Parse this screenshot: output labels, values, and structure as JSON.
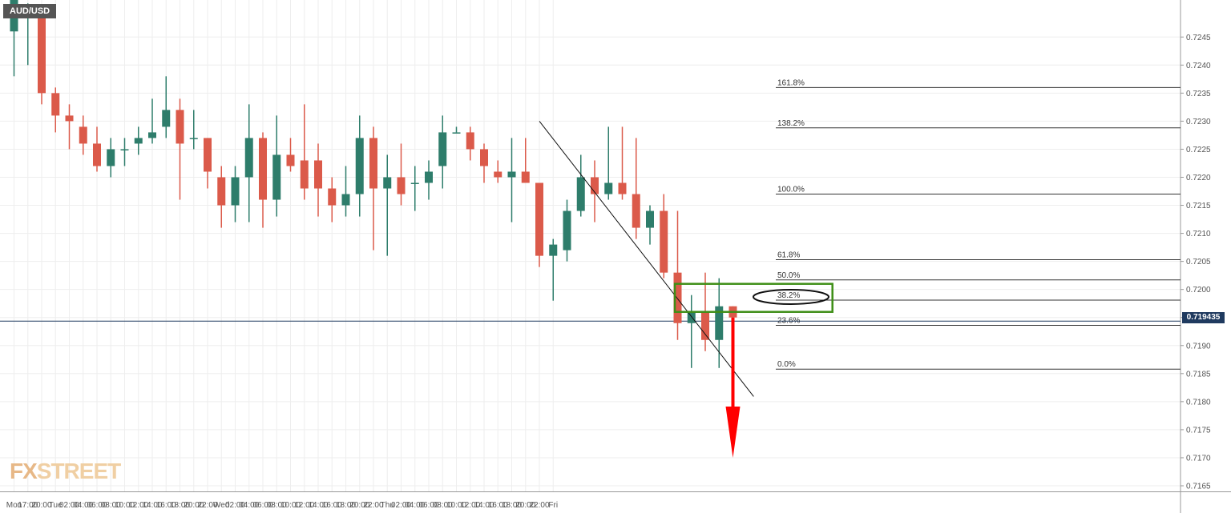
{
  "chart_data": {
    "type": "candlestick",
    "symbol": "AUD/USD",
    "watermark": {
      "part1": "FX",
      "part2": "STREET"
    },
    "current_price": "0.719435",
    "y_axis": {
      "range": [
        0.7163,
        0.7248
      ],
      "ticks": [
        "0.7245",
        "0.7240",
        "0.7235",
        "0.7230",
        "0.7225",
        "0.7220",
        "0.7215",
        "0.7210",
        "0.7205",
        "0.7200",
        "0.7195",
        "0.7190",
        "0.7185",
        "0.7180",
        "0.7175",
        "0.7170",
        "0.7165"
      ]
    },
    "x_axis": {
      "labels": [
        "Mon",
        "17:00",
        "20:00",
        "Tue",
        "02:00",
        "04:00",
        "06:00",
        "08:00",
        "10:00",
        "12:00",
        "14:00",
        "16:00",
        "18:00",
        "20:00",
        "22:00",
        "Wed",
        "02:00",
        "04:00",
        "06:00",
        "08:00",
        "10:00",
        "12:00",
        "14:00",
        "16:00",
        "18:00",
        "20:00",
        "22:00",
        "Thu",
        "02:00",
        "04:00",
        "06:00",
        "08:00",
        "10:00",
        "12:00",
        "14:00",
        "16:00",
        "18:00",
        "20:00",
        "22:00",
        "Fri"
      ]
    },
    "candles": [
      {
        "o": 0.7246,
        "h": 0.7255,
        "l": 0.7238,
        "c": 0.7252
      },
      {
        "o": 0.725,
        "h": 0.7251,
        "l": 0.724,
        "c": 0.725
      },
      {
        "o": 0.725,
        "h": 0.725,
        "l": 0.7233,
        "c": 0.7235
      },
      {
        "o": 0.7235,
        "h": 0.7236,
        "l": 0.7228,
        "c": 0.7231
      },
      {
        "o": 0.7231,
        "h": 0.7233,
        "l": 0.7225,
        "c": 0.723
      },
      {
        "o": 0.7229,
        "h": 0.7231,
        "l": 0.7224,
        "c": 0.7226
      },
      {
        "o": 0.7226,
        "h": 0.7229,
        "l": 0.7221,
        "c": 0.7222
      },
      {
        "o": 0.7222,
        "h": 0.7227,
        "l": 0.722,
        "c": 0.7225
      },
      {
        "o": 0.7225,
        "h": 0.7227,
        "l": 0.7222,
        "c": 0.7225
      },
      {
        "o": 0.7226,
        "h": 0.7229,
        "l": 0.7224,
        "c": 0.7227
      },
      {
        "o": 0.7227,
        "h": 0.7234,
        "l": 0.7226,
        "c": 0.7228
      },
      {
        "o": 0.7229,
        "h": 0.7238,
        "l": 0.7227,
        "c": 0.7232
      },
      {
        "o": 0.7232,
        "h": 0.7234,
        "l": 0.7216,
        "c": 0.7226
      },
      {
        "o": 0.7227,
        "h": 0.7232,
        "l": 0.7225,
        "c": 0.7227
      },
      {
        "o": 0.7227,
        "h": 0.7227,
        "l": 0.7218,
        "c": 0.7221
      },
      {
        "o": 0.722,
        "h": 0.7222,
        "l": 0.7211,
        "c": 0.7215
      },
      {
        "o": 0.7215,
        "h": 0.7222,
        "l": 0.7212,
        "c": 0.722
      },
      {
        "o": 0.722,
        "h": 0.7233,
        "l": 0.7212,
        "c": 0.7227
      },
      {
        "o": 0.7227,
        "h": 0.7228,
        "l": 0.7211,
        "c": 0.7216
      },
      {
        "o": 0.7216,
        "h": 0.7231,
        "l": 0.7213,
        "c": 0.7224
      },
      {
        "o": 0.7224,
        "h": 0.7227,
        "l": 0.7221,
        "c": 0.7222
      },
      {
        "o": 0.7223,
        "h": 0.7233,
        "l": 0.7216,
        "c": 0.7218
      },
      {
        "o": 0.7223,
        "h": 0.7226,
        "l": 0.7213,
        "c": 0.7218
      },
      {
        "o": 0.7218,
        "h": 0.722,
        "l": 0.7212,
        "c": 0.7215
      },
      {
        "o": 0.7215,
        "h": 0.7222,
        "l": 0.7213,
        "c": 0.7217
      },
      {
        "o": 0.7217,
        "h": 0.7231,
        "l": 0.7213,
        "c": 0.7227
      },
      {
        "o": 0.7227,
        "h": 0.7229,
        "l": 0.7207,
        "c": 0.7218
      },
      {
        "o": 0.7218,
        "h": 0.7224,
        "l": 0.7206,
        "c": 0.722
      },
      {
        "o": 0.722,
        "h": 0.7226,
        "l": 0.7215,
        "c": 0.7217
      },
      {
        "o": 0.7219,
        "h": 0.7222,
        "l": 0.7214,
        "c": 0.7219
      },
      {
        "o": 0.7219,
        "h": 0.7223,
        "l": 0.7216,
        "c": 0.7221
      },
      {
        "o": 0.7222,
        "h": 0.7231,
        "l": 0.7218,
        "c": 0.7228
      },
      {
        "o": 0.7228,
        "h": 0.7229,
        "l": 0.7228,
        "c": 0.7228
      },
      {
        "o": 0.7228,
        "h": 0.7229,
        "l": 0.7223,
        "c": 0.7225
      },
      {
        "o": 0.7225,
        "h": 0.7226,
        "l": 0.7219,
        "c": 0.7222
      },
      {
        "o": 0.7221,
        "h": 0.7223,
        "l": 0.7219,
        "c": 0.722
      },
      {
        "o": 0.722,
        "h": 0.7227,
        "l": 0.7212,
        "c": 0.7221
      },
      {
        "o": 0.7221,
        "h": 0.7227,
        "l": 0.7219,
        "c": 0.7219
      },
      {
        "o": 0.7219,
        "h": 0.7219,
        "l": 0.7204,
        "c": 0.7206
      },
      {
        "o": 0.7206,
        "h": 0.7209,
        "l": 0.7198,
        "c": 0.7208
      },
      {
        "o": 0.7207,
        "h": 0.7216,
        "l": 0.7205,
        "c": 0.7214
      },
      {
        "o": 0.7214,
        "h": 0.7224,
        "l": 0.7213,
        "c": 0.722
      },
      {
        "o": 0.722,
        "h": 0.7223,
        "l": 0.7212,
        "c": 0.7217
      },
      {
        "o": 0.7217,
        "h": 0.7229,
        "l": 0.7216,
        "c": 0.7219
      },
      {
        "o": 0.7219,
        "h": 0.7229,
        "l": 0.7216,
        "c": 0.7217
      },
      {
        "o": 0.7217,
        "h": 0.7227,
        "l": 0.7209,
        "c": 0.7211
      },
      {
        "o": 0.7211,
        "h": 0.7215,
        "l": 0.7208,
        "c": 0.7214
      },
      {
        "o": 0.7214,
        "h": 0.7217,
        "l": 0.7202,
        "c": 0.7203
      },
      {
        "o": 0.7203,
        "h": 0.7214,
        "l": 0.7191,
        "c": 0.7194
      },
      {
        "o": 0.7194,
        "h": 0.7199,
        "l": 0.7186,
        "c": 0.7196
      },
      {
        "o": 0.7196,
        "h": 0.7203,
        "l": 0.7189,
        "c": 0.7191
      },
      {
        "o": 0.7191,
        "h": 0.7202,
        "l": 0.7186,
        "c": 0.7197
      },
      {
        "o": 0.7197,
        "h": 0.7197,
        "l": 0.7193,
        "c": 0.7195
      }
    ],
    "trendline": {
      "from": {
        "x": 38,
        "y": 0.723
      },
      "to": {
        "x": 50,
        "y": 0.7192
      }
    },
    "fibonacci": [
      {
        "label": "161.8%",
        "value": 0.7236
      },
      {
        "label": "138.2%",
        "value": 0.72288
      },
      {
        "label": "100.0%",
        "value": 0.7217
      },
      {
        "label": "61.8%",
        "value": 0.72053
      },
      {
        "label": "50.0%",
        "value": 0.72017
      },
      {
        "label": "38.2%",
        "value": 0.71981
      },
      {
        "label": "23.6%",
        "value": 0.71936
      },
      {
        "label": "0.0%",
        "value": 0.71858
      }
    ],
    "resistance_zone": {
      "x_from": 47.8,
      "x_to": 59.2,
      "y_from": 0.7196,
      "y_to": 0.7201
    },
    "forecast_arrow": {
      "x": 52,
      "from": 0.7195,
      "to": 0.717
    },
    "colors": {
      "bull": "#2e7d6b",
      "bear": "#db5a4a",
      "zone": "#3e8e16",
      "arrow": "#ff0000",
      "price_tag": "#1f3a5f"
    }
  }
}
